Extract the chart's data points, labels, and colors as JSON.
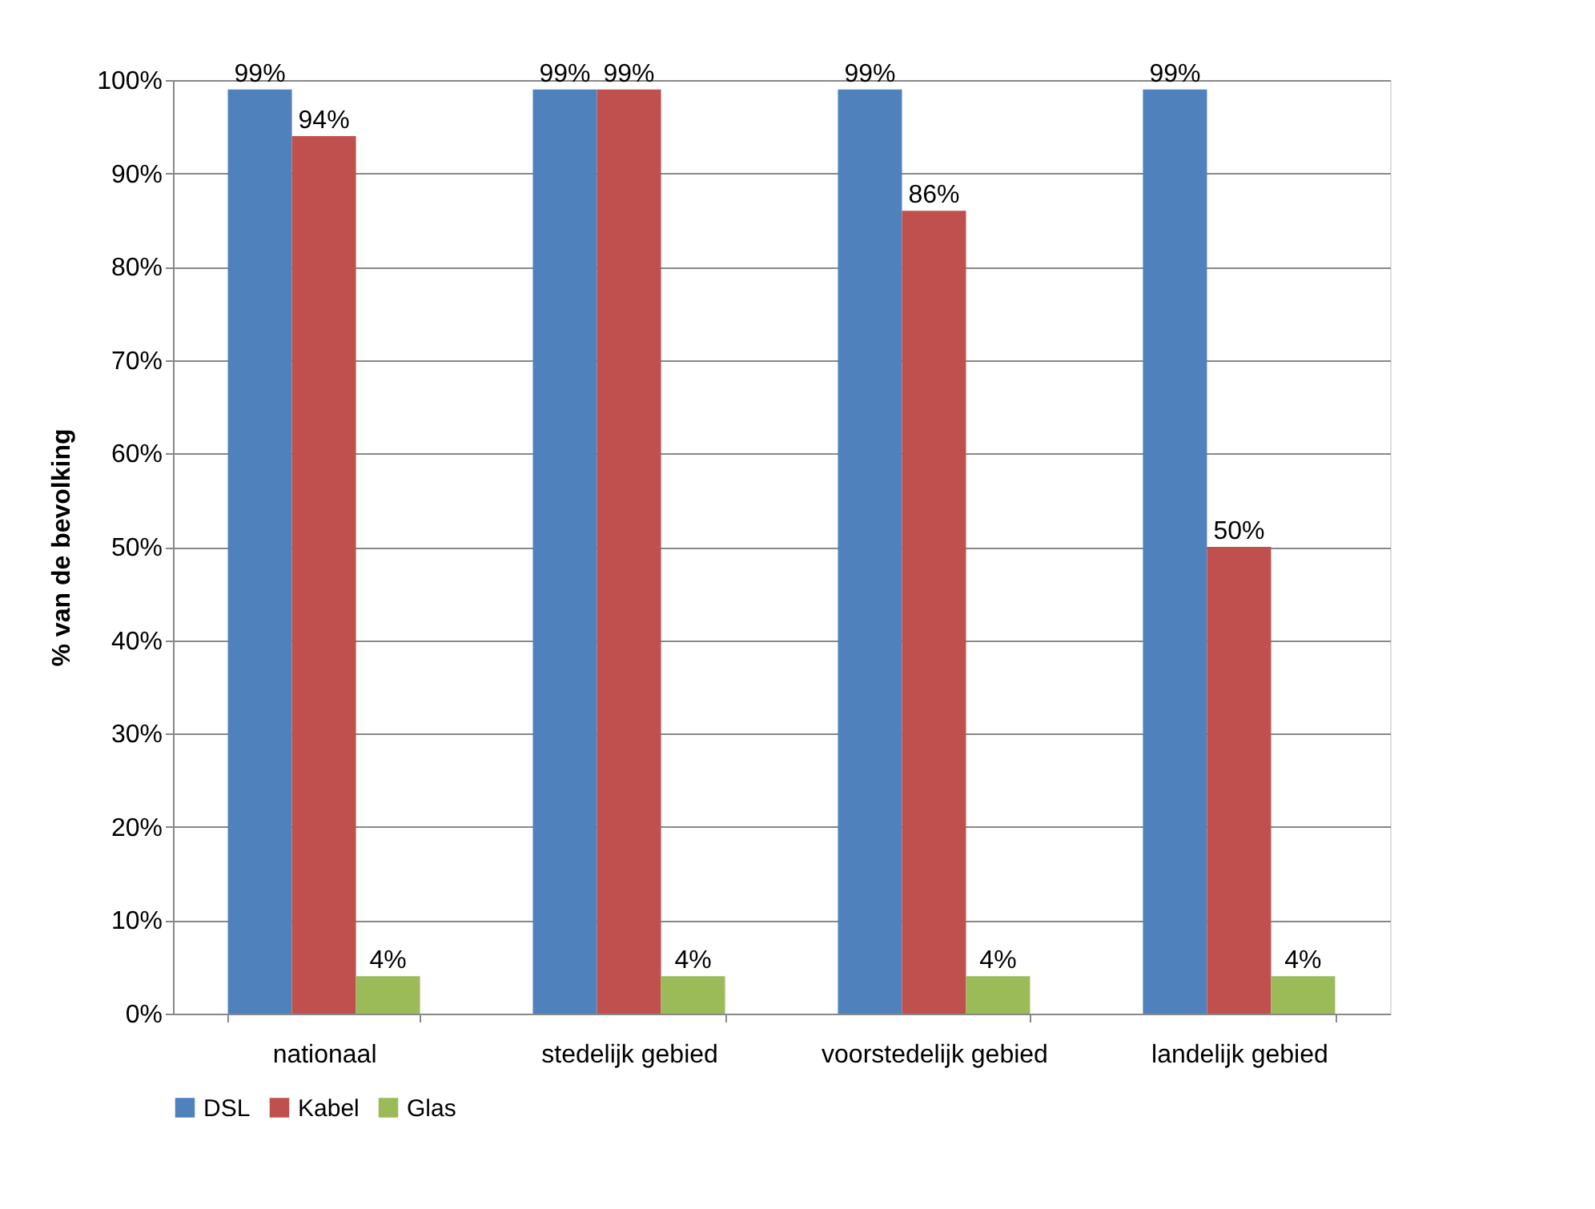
{
  "chart_data": {
    "type": "bar",
    "ylabel": "% van de bevolking",
    "categories": [
      "nationaal",
      "stedelijk gebied",
      "voorstedelijk gebied",
      "landelijk gebied"
    ],
    "series": [
      {
        "name": "DSL",
        "color": "#4f81bd",
        "values": [
          99,
          99,
          99,
          99
        ],
        "value_labels": [
          "99%",
          "99%",
          "99%",
          "99%"
        ]
      },
      {
        "name": "Kabel",
        "color": "#c0504d",
        "values": [
          94,
          99,
          86,
          50
        ],
        "value_labels": [
          "94%",
          "99%",
          "86%",
          "50%"
        ]
      },
      {
        "name": "Glas",
        "color": "#9bbb59",
        "values": [
          4,
          4,
          4,
          4
        ],
        "value_labels": [
          "4%",
          "4%",
          "4%",
          "4%"
        ]
      }
    ],
    "ylim": [
      0,
      100
    ],
    "yticks": [
      {
        "value": 0,
        "label": "0%"
      },
      {
        "value": 10,
        "label": "10%"
      },
      {
        "value": 20,
        "label": "20%"
      },
      {
        "value": 30,
        "label": "30%"
      },
      {
        "value": 40,
        "label": "40%"
      },
      {
        "value": 50,
        "label": "50%"
      },
      {
        "value": 60,
        "label": "60%"
      },
      {
        "value": 70,
        "label": "70%"
      },
      {
        "value": 80,
        "label": "80%"
      },
      {
        "value": 90,
        "label": "90%"
      },
      {
        "value": 100,
        "label": "100%"
      }
    ],
    "grid": "y",
    "legend": "bottom"
  }
}
